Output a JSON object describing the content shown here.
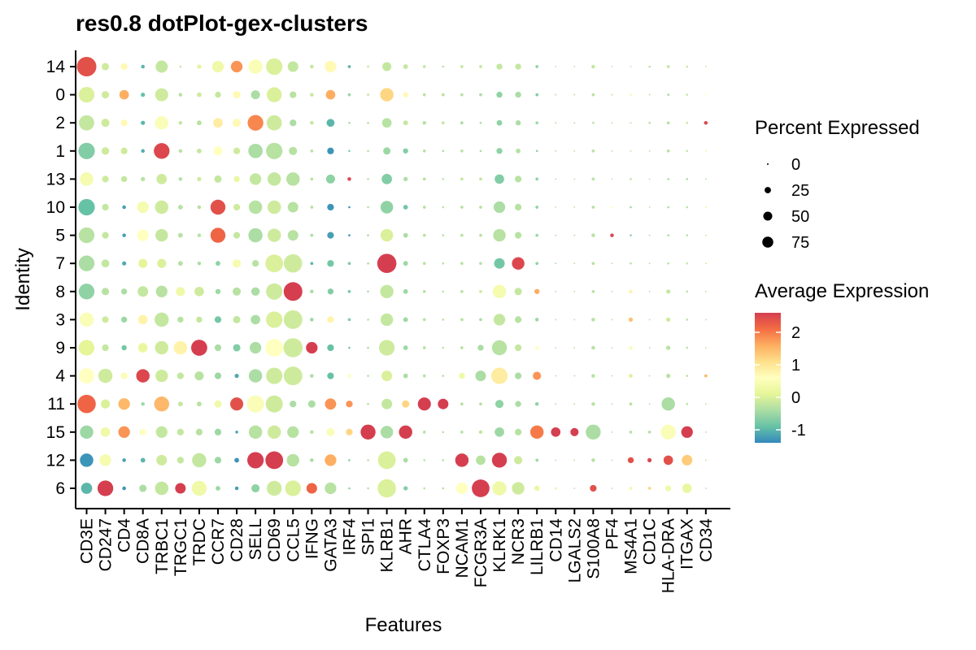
{
  "chart_data": {
    "type": "dotplot",
    "title": "res0.8 dotPlot-gex-clusters",
    "xlabel": "Features",
    "ylabel": "Identity",
    "features": [
      "CD3E",
      "CD247",
      "CD4",
      "CD8A",
      "TRBC1",
      "TRGC1",
      "TRDC",
      "CCR7",
      "CD28",
      "SELL",
      "CD69",
      "CCL5",
      "IFNG",
      "GATA3",
      "IRF4",
      "SPI1",
      "KLRB1",
      "AHR",
      "CTLA4",
      "FOXP3",
      "NCAM1",
      "FCGR3A",
      "KLRK1",
      "NCR3",
      "LILRB1",
      "CD14",
      "LGALS2",
      "S100A8",
      "PF4",
      "MS4A1",
      "CD1C",
      "HLA-DRA",
      "ITGAX",
      "CD34"
    ],
    "identities": [
      "14",
      "0",
      "2",
      "1",
      "13",
      "10",
      "5",
      "7",
      "8",
      "3",
      "9",
      "4",
      "11",
      "15",
      "12",
      "6"
    ],
    "percent_expressed": [
      [
        85,
        12,
        10,
        3,
        33,
        1,
        4,
        30,
        30,
        45,
        60,
        25,
        3,
        30,
        2,
        1,
        18,
        5,
        2,
        1,
        2,
        2,
        8,
        8,
        2,
        0.5,
        0.5,
        3,
        0.5,
        0.5,
        1,
        2,
        1,
        0.5
      ],
      [
        55,
        12,
        20,
        4,
        38,
        3,
        5,
        8,
        12,
        18,
        50,
        10,
        3,
        20,
        2,
        1,
        40,
        6,
        2,
        2,
        2,
        2,
        8,
        8,
        2,
        0.5,
        0.5,
        2,
        0.5,
        1,
        0.5,
        1,
        1,
        0.5
      ],
      [
        52,
        15,
        10,
        4,
        40,
        3,
        5,
        20,
        15,
        55,
        52,
        10,
        3,
        14,
        1,
        1,
        20,
        5,
        3,
        2,
        2,
        1,
        7,
        6,
        2,
        0.5,
        0.5,
        1,
        0.5,
        0.5,
        1,
        2,
        1,
        3
      ],
      [
        60,
        13,
        10,
        3,
        55,
        3,
        5,
        18,
        10,
        46,
        60,
        15,
        2,
        10,
        1,
        1,
        12,
        6,
        2,
        1,
        2,
        1,
        8,
        5,
        1,
        0.5,
        0.5,
        2,
        0.5,
        0.5,
        0.5,
        2,
        1,
        0.5
      ],
      [
        40,
        10,
        8,
        4,
        24,
        3,
        4,
        12,
        8,
        30,
        40,
        40,
        2,
        18,
        3,
        1,
        24,
        4,
        2,
        1,
        2,
        2,
        20,
        10,
        2,
        0.5,
        0.5,
        2,
        0.5,
        1,
        0.5,
        1,
        1,
        0.5
      ],
      [
        60,
        10,
        3,
        30,
        40,
        5,
        3,
        50,
        10,
        40,
        40,
        25,
        2,
        10,
        1,
        1,
        35,
        5,
        2,
        1,
        2,
        2,
        30,
        10,
        2,
        0.5,
        0.5,
        2,
        1,
        1,
        0.5,
        1,
        1,
        0.5
      ],
      [
        55,
        10,
        3,
        30,
        35,
        5,
        3,
        50,
        10,
        45,
        40,
        25,
        2,
        10,
        1,
        1,
        35,
        5,
        2,
        1,
        2,
        2,
        35,
        10,
        2,
        0.5,
        0.5,
        3,
        3,
        1,
        0.5,
        1,
        1,
        0.5
      ],
      [
        55,
        14,
        4,
        18,
        18,
        5,
        3,
        5,
        15,
        10,
        70,
        75,
        2,
        10,
        2,
        1,
        82,
        5,
        2,
        1,
        2,
        2,
        25,
        35,
        2,
        0.5,
        0.5,
        2,
        0.5,
        1,
        0.5,
        1,
        1,
        0.5
      ],
      [
        55,
        12,
        8,
        25,
        30,
        18,
        20,
        6,
        15,
        16,
        60,
        78,
        3,
        8,
        2,
        1,
        40,
        5,
        2,
        1,
        2,
        2,
        40,
        12,
        6,
        0.5,
        0.5,
        2,
        0.5,
        3,
        0.5,
        4,
        1,
        0.5
      ],
      [
        45,
        10,
        8,
        20,
        45,
        8,
        8,
        10,
        12,
        20,
        60,
        78,
        3,
        10,
        2,
        1,
        35,
        5,
        2,
        1,
        2,
        2,
        30,
        10,
        3,
        0.5,
        0.5,
        3,
        0.5,
        4,
        0.5,
        4,
        1,
        0.5
      ],
      [
        55,
        10,
        6,
        20,
        40,
        40,
        58,
        10,
        12,
        30,
        70,
        82,
        30,
        10,
        1,
        1,
        55,
        5,
        2,
        1,
        2,
        8,
        50,
        10,
        3,
        0.5,
        0.5,
        3,
        0.5,
        3,
        0.5,
        4,
        1,
        0.5
      ],
      [
        52,
        45,
        10,
        40,
        35,
        10,
        18,
        10,
        4,
        40,
        60,
        78,
        3,
        10,
        3,
        1,
        25,
        5,
        2,
        1,
        8,
        25,
        60,
        10,
        15,
        0.5,
        0.5,
        3,
        0.5,
        3,
        0.5,
        4,
        1,
        2
      ],
      [
        75,
        18,
        30,
        3,
        50,
        5,
        5,
        12,
        38,
        65,
        65,
        10,
        12,
        28,
        10,
        1,
        25,
        12,
        38,
        25,
        2,
        2,
        15,
        8,
        3,
        0.5,
        0.5,
        3,
        0.5,
        2,
        0.5,
        40,
        1,
        0.5
      ],
      [
        40,
        20,
        30,
        10,
        30,
        10,
        10,
        10,
        2,
        40,
        40,
        30,
        3,
        15,
        10,
        50,
        35,
        40,
        2,
        1,
        2,
        3,
        20,
        10,
        40,
        20,
        15,
        50,
        0.5,
        2,
        2,
        50,
        30,
        0.5
      ],
      [
        40,
        30,
        3,
        5,
        25,
        10,
        45,
        10,
        5,
        60,
        70,
        35,
        3,
        30,
        1,
        1,
        70,
        5,
        1,
        1,
        40,
        20,
        50,
        15,
        2,
        0.5,
        0.5,
        3,
        0.5,
        8,
        4,
        20,
        25,
        0.5
      ],
      [
        28,
        55,
        3,
        12,
        40,
        25,
        50,
        5,
        3,
        15,
        50,
        55,
        25,
        30,
        1,
        1,
        75,
        4,
        1,
        1,
        30,
        70,
        45,
        35,
        6,
        1,
        0.5,
        10,
        0.5,
        2,
        2,
        8,
        20,
        0.5
      ]
    ],
    "average_expression": [
      [
        2.4,
        -0.1,
        0.7,
        -1,
        -0.2,
        -0.2,
        0.1,
        0.3,
        1.8,
        0.5,
        0,
        -0.2,
        -0.2,
        0.7,
        -1,
        -0.2,
        -0.2,
        -0.2,
        -0.2,
        -0.3,
        -0.2,
        -0.2,
        -0.2,
        -0.2,
        -0.6,
        -0.3,
        -0.3,
        -0.2,
        -0.3,
        -0.3,
        -0.3,
        -0.2,
        -0.2,
        -0.2
      ],
      [
        0,
        -0.1,
        1.6,
        -0.9,
        -0.1,
        -0.3,
        -0.1,
        -0.2,
        0.7,
        -0.4,
        0,
        -0.3,
        -0.2,
        1.6,
        -0.5,
        -0.3,
        1.2,
        0.7,
        -0.3,
        -0.3,
        -0.3,
        -0.4,
        -0.6,
        -0.4,
        -0.7,
        -0.3,
        -0.3,
        -0.3,
        -0.3,
        0.4,
        -0.3,
        -0.5,
        -0.2,
        0.5
      ],
      [
        -0.2,
        -0.1,
        0.7,
        -1,
        0.5,
        -0.2,
        -0.3,
        0.9,
        0.7,
        1.9,
        -0.1,
        -0.4,
        -0.2,
        -1,
        -0.4,
        -0.3,
        -0.3,
        -0.2,
        -0.3,
        -0.2,
        -0.4,
        -0.4,
        -0.6,
        -0.4,
        -0.5,
        -0.3,
        -0.3,
        -0.3,
        -0.3,
        -0.3,
        -0.3,
        -0.3,
        -0.2,
        2.5
      ],
      [
        -0.7,
        -0.1,
        -0.1,
        -1.1,
        2.5,
        -0.3,
        -0.2,
        0.6,
        -0.1,
        -0.4,
        -0.3,
        -0.3,
        -0.3,
        -1.3,
        -0.7,
        -0.3,
        -0.5,
        -0.7,
        -0.3,
        -0.4,
        -0.3,
        -0.4,
        -0.6,
        -0.3,
        -0.6,
        -0.3,
        -0.3,
        -0.3,
        -0.3,
        -0.3,
        -0.3,
        -0.3,
        -0.2,
        0.2
      ],
      [
        0.4,
        -0.1,
        -0.2,
        -0.3,
        -0.1,
        -0.3,
        -0.1,
        -0.2,
        0.2,
        -0.2,
        -0.2,
        -0.3,
        -0.3,
        -0.6,
        2.5,
        -0.3,
        -0.7,
        -0.4,
        -0.3,
        -0.3,
        -0.2,
        -0.2,
        -0.7,
        -0.3,
        -0.6,
        -0.4,
        -0.3,
        -0.3,
        -0.3,
        -0.3,
        -0.3,
        -0.4,
        -0.4,
        -0.4
      ],
      [
        -0.9,
        -0.2,
        -1.2,
        0.4,
        -0.1,
        -0.3,
        -0.3,
        2.4,
        -0.1,
        -0.3,
        -0.1,
        -0.3,
        -0.3,
        -1.3,
        -1.3,
        -0.3,
        -0.6,
        -0.8,
        -0.3,
        -0.3,
        -0.3,
        -0.3,
        -0.4,
        -0.3,
        -0.6,
        -0.3,
        -0.3,
        -0.3,
        0.5,
        -0.5,
        -0.3,
        -0.4,
        -0.3,
        0.2
      ],
      [
        -0.3,
        -0.2,
        -1.2,
        0.6,
        -0.2,
        -0.3,
        -0.3,
        2.2,
        -0.2,
        -0.4,
        -0.1,
        -0.3,
        -0.4,
        -1.2,
        -1.3,
        -0.4,
        0,
        -0.4,
        -0.3,
        -0.3,
        -0.3,
        -0.3,
        -0.3,
        -0.3,
        -0.5,
        -0.3,
        -0.3,
        -0.3,
        2.5,
        -0.6,
        -0.3,
        -0.4,
        -0.3,
        -0.2
      ],
      [
        -0.4,
        -0.2,
        -1.1,
        0.1,
        0,
        -0.3,
        -0.4,
        -0.6,
        0.4,
        -0.3,
        0,
        -0.1,
        -1,
        -0.8,
        -0.7,
        -0.4,
        2.6,
        -0.5,
        -0.3,
        -0.3,
        -0.3,
        -0.3,
        -0.8,
        2.5,
        -0.6,
        -0.4,
        -0.3,
        -0.3,
        -0.3,
        -0.3,
        -0.3,
        -0.3,
        -0.2,
        -0.2
      ],
      [
        -0.6,
        -0.3,
        -0.4,
        -0.2,
        -0.3,
        0.3,
        -0.1,
        -0.5,
        -0.3,
        -0.4,
        -0.1,
        2.6,
        -0.4,
        -0.7,
        -0.8,
        -0.4,
        -0.2,
        -0.5,
        -0.3,
        -0.3,
        -0.3,
        -0.1,
        0.4,
        -0.2,
        1.6,
        -0.3,
        -0.3,
        -0.3,
        -0.3,
        0.8,
        -0.3,
        -0.2,
        -0.3,
        -0.3
      ],
      [
        0.5,
        -0.1,
        -0.5,
        0.8,
        -0.2,
        -0.3,
        -0.2,
        -0.8,
        -0.2,
        -0.4,
        0,
        -0.1,
        -0.5,
        0.8,
        -0.7,
        -0.3,
        -0.2,
        -0.5,
        -0.3,
        -0.3,
        -0.3,
        -0.4,
        -0.2,
        -0.3,
        -0.5,
        -0.3,
        -0.3,
        -0.3,
        -0.3,
        1.4,
        -0.3,
        -0.1,
        -0.3,
        -0.3
      ],
      [
        0.1,
        -0.2,
        -0.8,
        0.2,
        -0.1,
        0.8,
        2.6,
        -0.4,
        -0.7,
        -0.4,
        0.6,
        -0.1,
        2.6,
        -0.9,
        -0.8,
        -0.4,
        -0.1,
        -0.5,
        -0.3,
        -0.3,
        -0.3,
        -0.4,
        -0.3,
        -0.2,
        0.6,
        -0.3,
        -0.3,
        -0.3,
        -0.3,
        0.5,
        -0.3,
        -0.3,
        -0.3,
        -0.3
      ],
      [
        0.6,
        -0.1,
        0.5,
        2.5,
        -0.1,
        -0.2,
        -0.3,
        -0.5,
        -1.1,
        -0.4,
        -0.1,
        -0.1,
        -0.4,
        -0.9,
        0.6,
        -0.3,
        0,
        -0.4,
        -0.3,
        -0.3,
        0.3,
        -0.4,
        0.9,
        -0.4,
        1.8,
        -0.3,
        -0.3,
        -0.3,
        -0.3,
        0,
        -0.3,
        -0.3,
        -0.3,
        1.5
      ],
      [
        2.2,
        0,
        1.5,
        -0.5,
        1.5,
        -0.2,
        -0.3,
        0.3,
        2.4,
        0.5,
        -0.1,
        -0.4,
        -0.4,
        1.8,
        1.8,
        -0.3,
        -0.2,
        1.2,
        2.6,
        2.6,
        -0.3,
        -0.3,
        -0.6,
        -0.4,
        -0.6,
        -0.3,
        -0.3,
        -0.3,
        -0.3,
        -0.3,
        -0.3,
        -0.4,
        -0.3,
        -0.3
      ],
      [
        -0.5,
        0.3,
        1.8,
        0.6,
        -0.2,
        -0.2,
        -0.3,
        -0.5,
        -1.1,
        -0.3,
        -0.1,
        -0.3,
        -0.3,
        0.5,
        1.2,
        2.6,
        -0.4,
        2.6,
        -0.3,
        -0.3,
        -0.3,
        -0.2,
        -0.5,
        -0.3,
        2,
        2.6,
        2.6,
        -0.4,
        -0.3,
        -0.3,
        -0.3,
        0.5,
        2.6,
        -0.3
      ],
      [
        -1.3,
        0.4,
        -1.2,
        -1,
        -0.1,
        -0.2,
        -0.2,
        -0.5,
        -1.3,
        2.6,
        2.6,
        -0.3,
        -0.4,
        1.6,
        -0.7,
        -0.3,
        0,
        -0.4,
        -0.3,
        -0.3,
        2.6,
        -0.3,
        2.6,
        -0.1,
        -0.5,
        -0.3,
        -0.3,
        -0.3,
        -0.3,
        2.4,
        2.5,
        2.4,
        1.3,
        -0.3
      ],
      [
        -1,
        2.6,
        -1.3,
        -0.4,
        -0.2,
        2.6,
        0.3,
        -0.5,
        -1.2,
        -0.6,
        -0.1,
        0,
        2.2,
        -0.3,
        -0.6,
        -0.3,
        0,
        -0.7,
        -0.3,
        -0.3,
        0.6,
        2.6,
        0.3,
        -0.1,
        0.2,
        0.1,
        -0.3,
        2.4,
        -0.3,
        0.3,
        1.2,
        0.3,
        0.2,
        -0.3
      ]
    ],
    "size_legend": {
      "title": "Percent Expressed",
      "values": [
        0,
        25,
        50,
        75
      ]
    },
    "color_legend": {
      "title": "Average Expression",
      "min": -1.4,
      "max": 2.6,
      "ticks": [
        -1,
        0,
        1,
        2
      ],
      "palette": [
        "#3288BD",
        "#66C2A5",
        "#ABDDA4",
        "#E6F598",
        "#FFFFBF",
        "#FEE08B",
        "#FDAE61",
        "#F46D43",
        "#D53E4F"
      ]
    }
  }
}
